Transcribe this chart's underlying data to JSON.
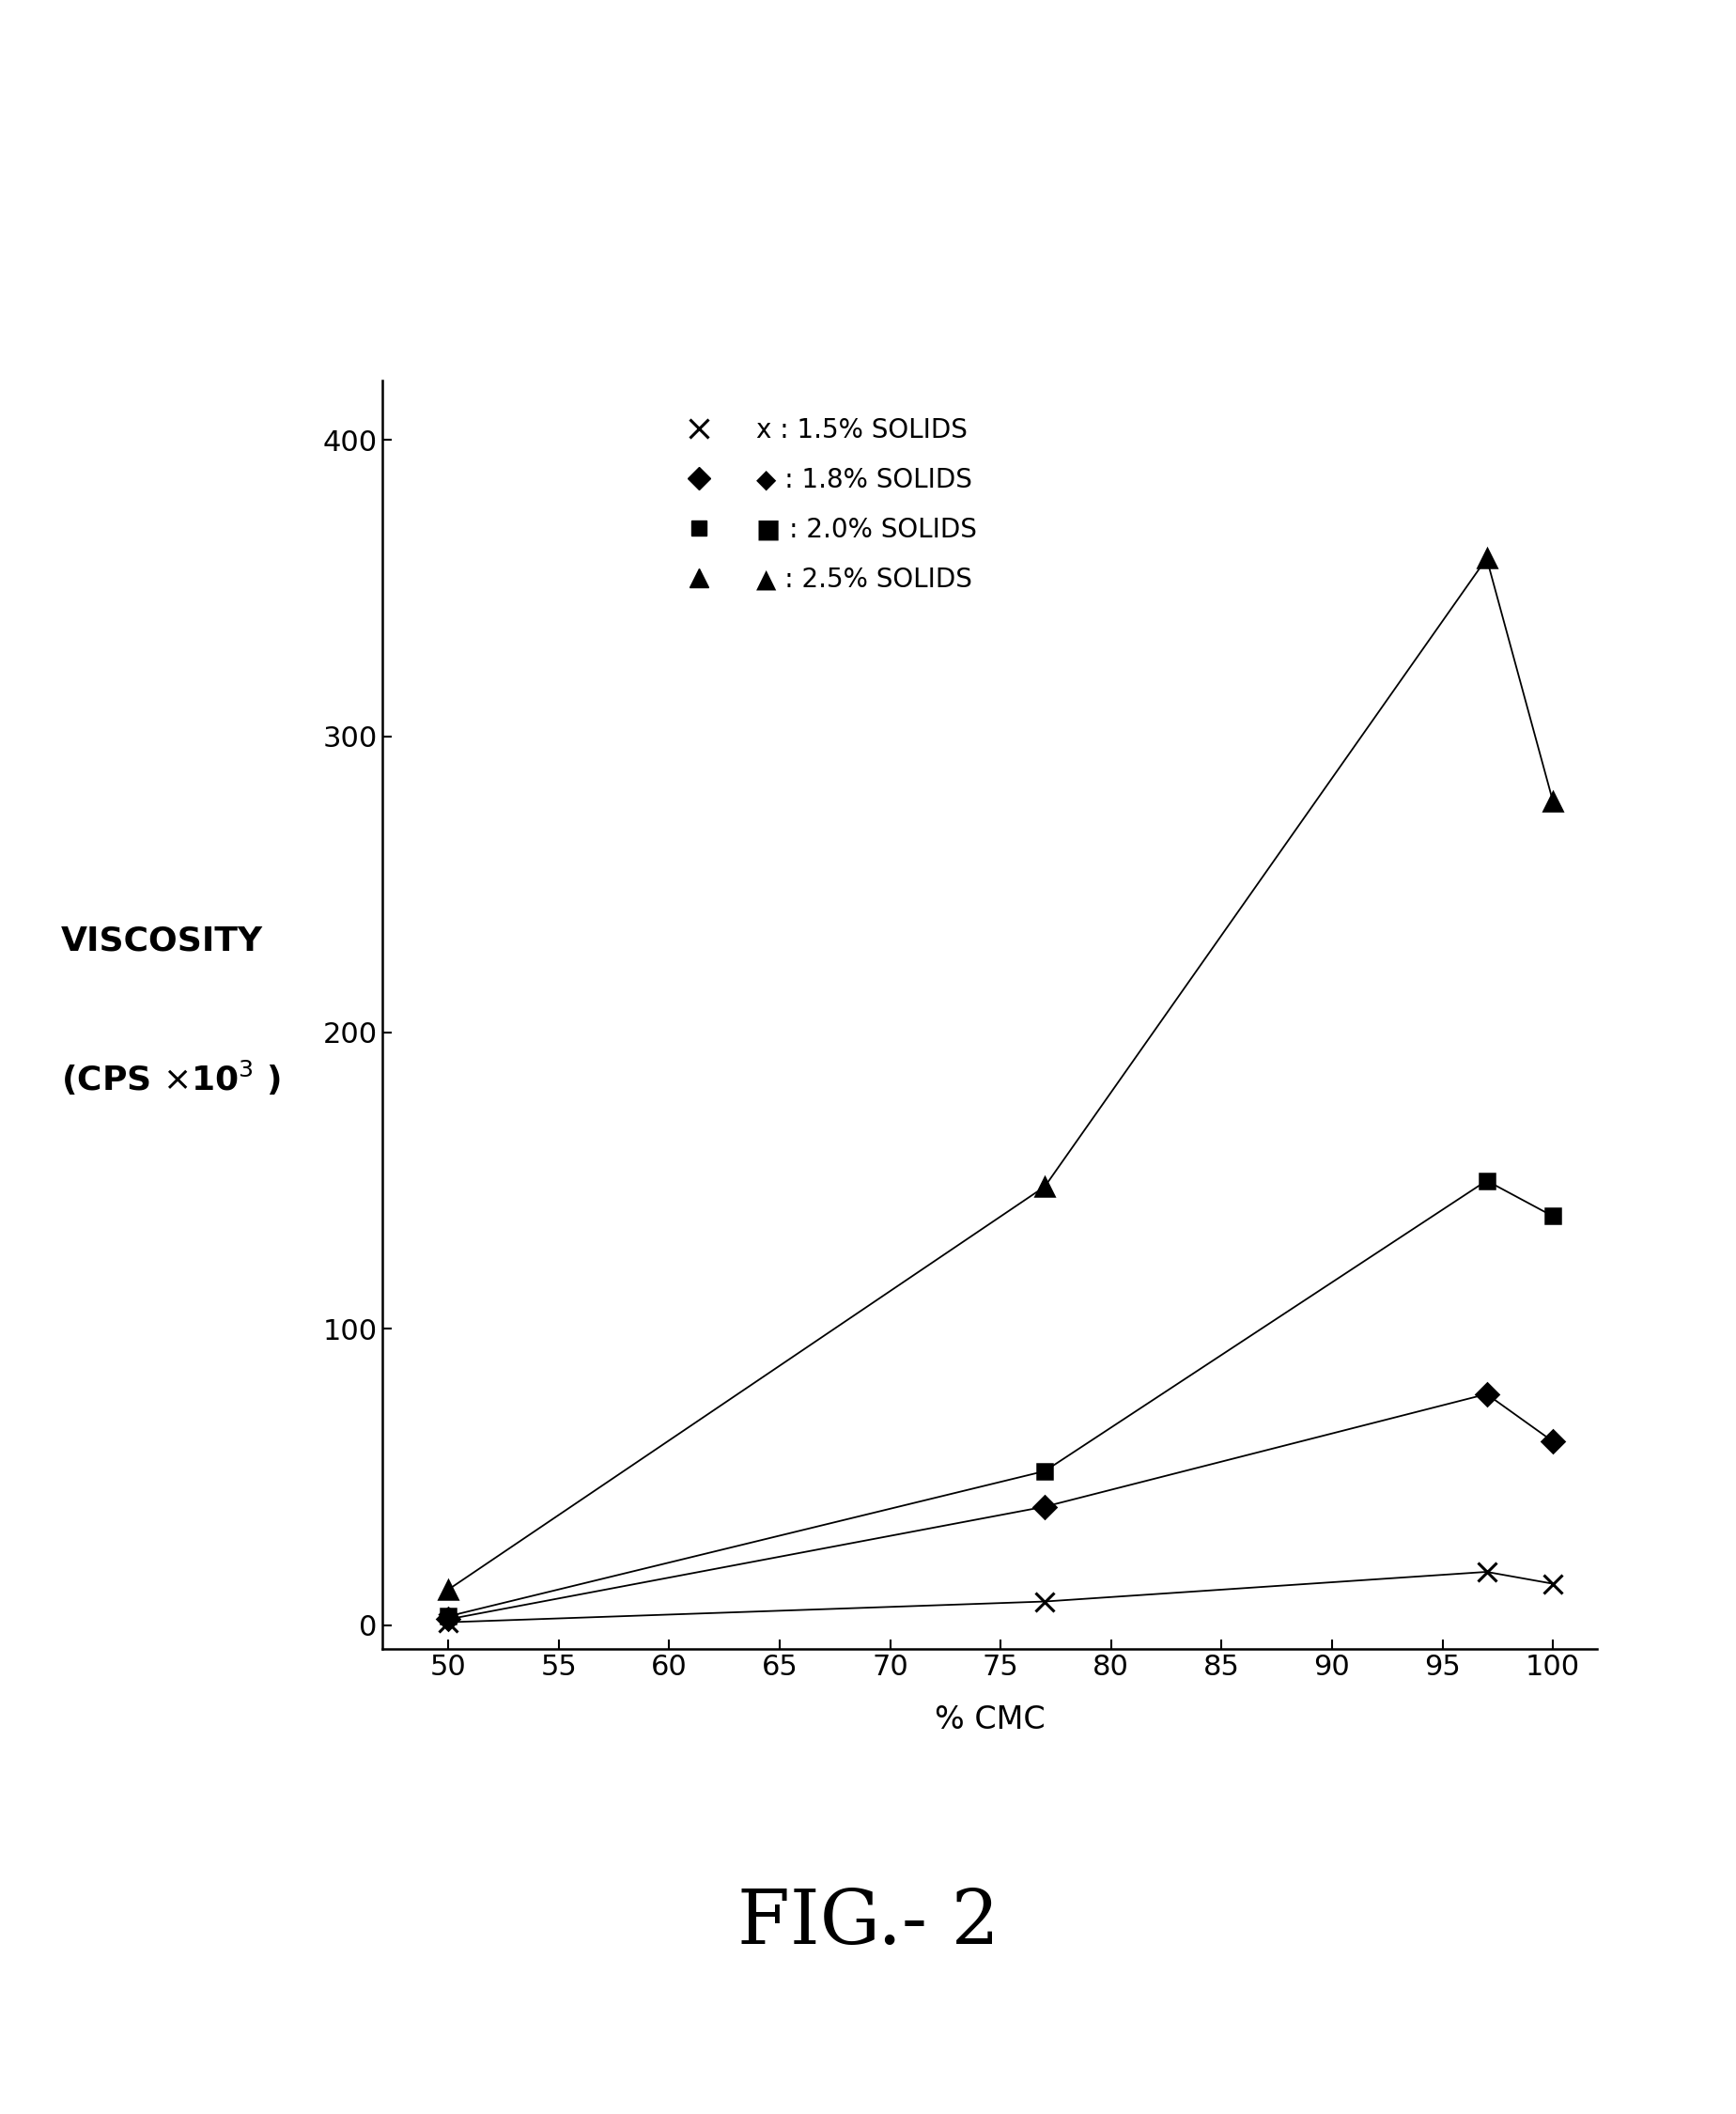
{
  "series": [
    {
      "label": "x : 1.5% SOLIDS",
      "marker": "x",
      "x": [
        50,
        77,
        97,
        100
      ],
      "y": [
        1,
        8,
        18,
        14
      ],
      "color": "#000000"
    },
    {
      "label": "◆ : 1.8% SOLIDS",
      "marker": "D",
      "x": [
        50,
        77,
        97,
        100
      ],
      "y": [
        2,
        40,
        78,
        62
      ],
      "color": "#000000"
    },
    {
      "label": "■ : 2.0% SOLIDS",
      "marker": "s",
      "x": [
        50,
        77,
        97,
        100
      ],
      "y": [
        3,
        52,
        150,
        138
      ],
      "color": "#000000"
    },
    {
      "label": "▲ : 2.5% SOLIDS",
      "marker": "^",
      "x": [
        50,
        77,
        97,
        100
      ],
      "y": [
        12,
        148,
        360,
        278
      ],
      "color": "#000000"
    }
  ],
  "xlabel": "% CMC",
  "ylabel_line1": "VISCOSITY",
  "ylabel_line2": "(CPS ×10",
  "ylabel_exp": "3",
  "ylabel_end": " )",
  "xlim": [
    47,
    102
  ],
  "ylim": [
    -8,
    420
  ],
  "xticks": [
    50,
    55,
    60,
    65,
    70,
    75,
    80,
    85,
    90,
    95,
    100
  ],
  "yticks": [
    0,
    100,
    200,
    300,
    400
  ],
  "figure_title": "FIG.- 2",
  "background_color": "#ffffff",
  "tick_fontsize": 22,
  "label_fontsize": 24,
  "legend_fontsize": 20,
  "title_fontsize": 58,
  "linewidth": 1.3,
  "markers": [
    "x",
    "D",
    "s",
    "^"
  ],
  "markersizes": [
    15,
    12,
    12,
    14
  ],
  "legend_labels": [
    "x : 1.5% SOLIDS",
    "◆ : 1.8% SOLIDS",
    "■ : 2.0% SOLIDS",
    "▲ : 2.5% SOLIDS"
  ]
}
